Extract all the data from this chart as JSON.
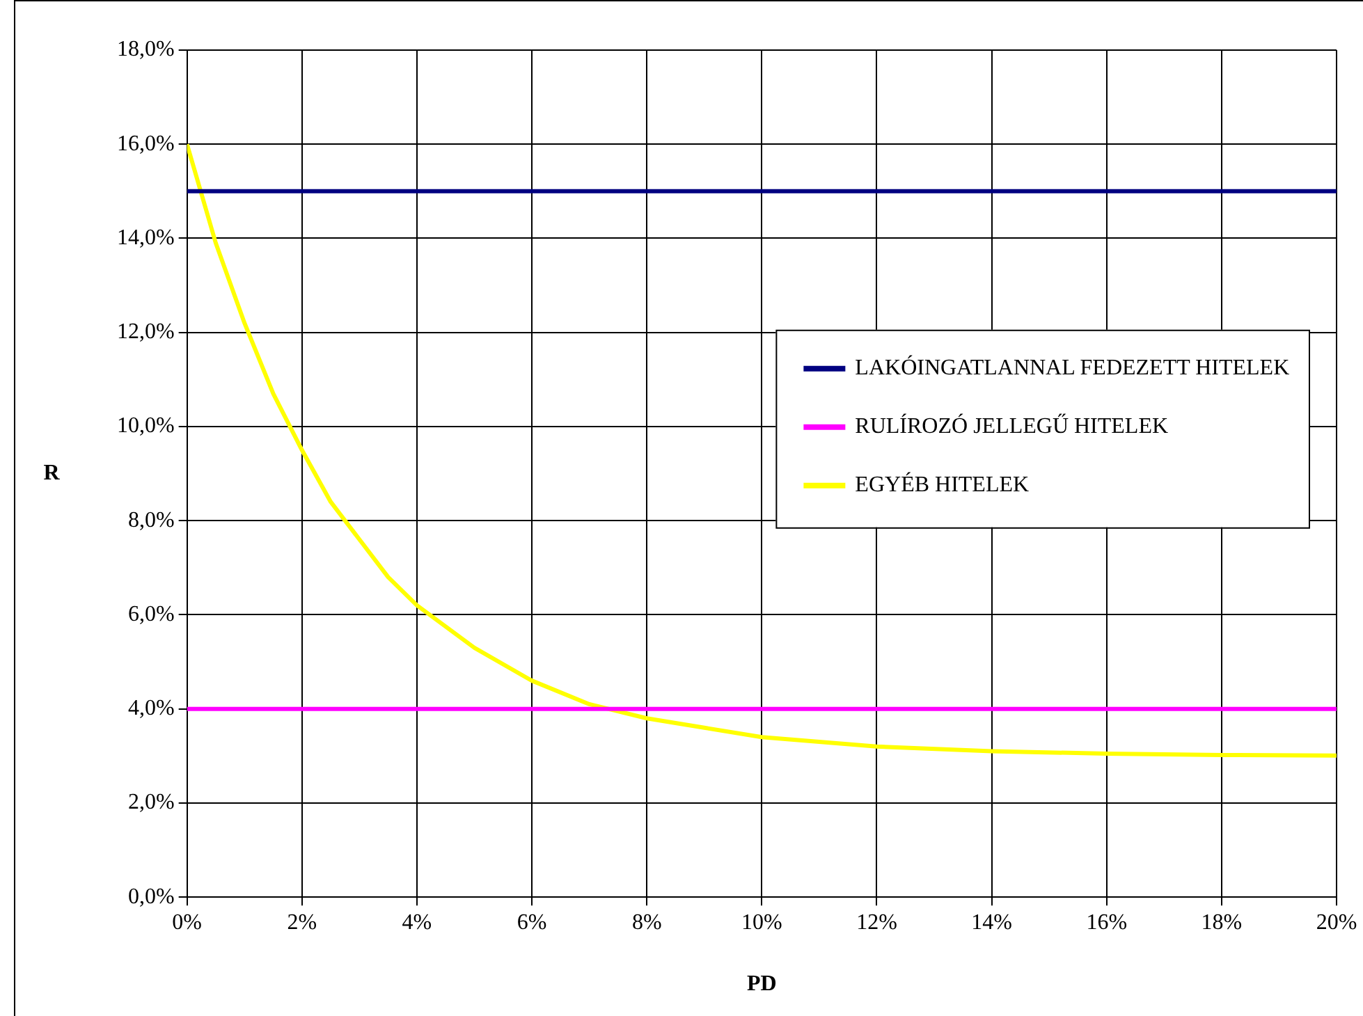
{
  "chart_data": {
    "type": "line",
    "xlabel": "PD",
    "ylabel": "R",
    "xlim": [
      0,
      20
    ],
    "ylim": [
      0,
      18
    ],
    "xticks": [
      {
        "value": 0,
        "label": "0%"
      },
      {
        "value": 2,
        "label": "2%"
      },
      {
        "value": 4,
        "label": "4%"
      },
      {
        "value": 6,
        "label": "6%"
      },
      {
        "value": 8,
        "label": "8%"
      },
      {
        "value": 10,
        "label": "10%"
      },
      {
        "value": 12,
        "label": "12%"
      },
      {
        "value": 14,
        "label": "14%"
      },
      {
        "value": 16,
        "label": "16%"
      },
      {
        "value": 18,
        "label": "18%"
      },
      {
        "value": 20,
        "label": "20%"
      }
    ],
    "yticks": [
      {
        "value": 0,
        "label": "0,0%"
      },
      {
        "value": 2,
        "label": "2,0%"
      },
      {
        "value": 4,
        "label": "4,0%"
      },
      {
        "value": 6,
        "label": "6,0%"
      },
      {
        "value": 8,
        "label": "8,0%"
      },
      {
        "value": 10,
        "label": "10,0%"
      },
      {
        "value": 12,
        "label": "12,0%"
      },
      {
        "value": 14,
        "label": "14,0%"
      },
      {
        "value": 16,
        "label": "16,0%"
      },
      {
        "value": 18,
        "label": "18,0%"
      }
    ],
    "grid": true,
    "legend": "right",
    "marker": "none",
    "line_style": "solid",
    "series": [
      {
        "name": "LAKÓINGATLANNAL FEDEZETT HITELEK",
        "color": "#000080",
        "x": [
          0,
          20
        ],
        "values": [
          15,
          15
        ]
      },
      {
        "name": "RULÍROZÓ JELLEGŰ HITELEK",
        "color": "#ff00ff",
        "x": [
          0,
          20
        ],
        "values": [
          4,
          4
        ]
      },
      {
        "name": "EGYÉB HITELEK",
        "color": "#ffff00",
        "x": [
          0,
          0.5,
          1,
          1.5,
          2,
          2.5,
          3,
          3.5,
          4,
          5,
          6,
          7,
          8,
          9,
          10,
          12,
          14,
          16,
          18,
          20
        ],
        "values": [
          16,
          13.9,
          12.2,
          10.7,
          9.5,
          8.4,
          7.6,
          6.8,
          6.2,
          5.3,
          4.6,
          4.1,
          3.8,
          3.6,
          3.4,
          3.2,
          3.1,
          3.05,
          3.02,
          3.01
        ]
      }
    ]
  }
}
